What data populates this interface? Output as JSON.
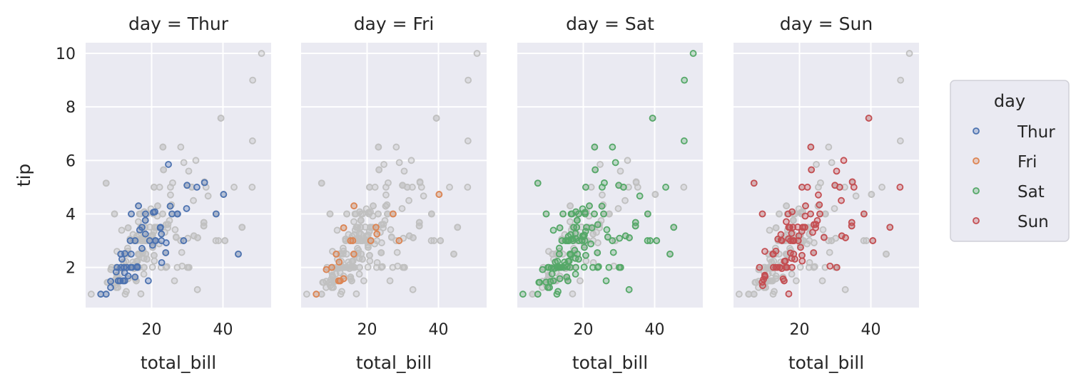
{
  "chart_data": {
    "type": "scatter",
    "facet_variable": "day",
    "facets": [
      {
        "title": "day = Thur",
        "hue": "Thur"
      },
      {
        "title": "day = Fri",
        "hue": "Fri"
      },
      {
        "title": "day = Sat",
        "hue": "Sat"
      },
      {
        "title": "day = Sun",
        "hue": "Sun"
      }
    ],
    "xlabel": "total_bill",
    "ylabel": "tip",
    "xlim": [
      1.5,
      53.5
    ],
    "ylim": [
      0.5,
      10.4
    ],
    "xticks": [
      20,
      40
    ],
    "yticks": [
      2,
      4,
      6,
      8,
      10
    ],
    "grid": true,
    "background_color": "#eaeaf2",
    "background_points_color": "#c0c0c0",
    "legend": {
      "title": "day",
      "placement": "right"
    },
    "series": [
      {
        "name": "Thur",
        "color": "#4c72b0",
        "points": [
          [
            27.2,
            4.0
          ],
          [
            22.76,
            3.0
          ],
          [
            17.29,
            2.71
          ],
          [
            19.44,
            3.0
          ],
          [
            16.66,
            3.4
          ],
          [
            10.07,
            1.83
          ],
          [
            32.68,
            5.0
          ],
          [
            15.98,
            2.03
          ],
          [
            34.83,
            5.17
          ],
          [
            13.03,
            2.0
          ],
          [
            18.28,
            4.0
          ],
          [
            24.71,
            5.85
          ],
          [
            21.16,
            3.0
          ],
          [
            28.97,
            3.0
          ],
          [
            22.49,
            3.5
          ],
          [
            5.75,
            1.0
          ],
          [
            16.32,
            4.3
          ],
          [
            22.75,
            3.25
          ],
          [
            40.17,
            4.73
          ],
          [
            27.28,
            4.0
          ],
          [
            12.03,
            1.5
          ],
          [
            21.01,
            3.0
          ],
          [
            12.46,
            1.5
          ],
          [
            11.35,
            2.5
          ],
          [
            15.38,
            3.0
          ],
          [
            44.3,
            2.5
          ],
          [
            22.42,
            3.48
          ],
          [
            20.92,
            4.08
          ],
          [
            15.36,
            1.64
          ],
          [
            20.49,
            4.06
          ],
          [
            25.21,
            4.29
          ],
          [
            18.24,
            3.76
          ],
          [
            14.31,
            4.0
          ],
          [
            14.0,
            3.0
          ],
          [
            7.25,
            1.0
          ],
          [
            38.07,
            4.0
          ],
          [
            23.95,
            2.55
          ],
          [
            25.71,
            4.0
          ],
          [
            17.31,
            3.5
          ],
          [
            29.93,
            5.07
          ],
          [
            10.65,
            1.5
          ],
          [
            12.43,
            1.8
          ],
          [
            24.08,
            2.92
          ],
          [
            11.69,
            2.31
          ],
          [
            13.42,
            1.68
          ],
          [
            14.26,
            2.5
          ],
          [
            15.95,
            2.0
          ],
          [
            12.48,
            2.52
          ],
          [
            29.8,
            4.2
          ],
          [
            8.52,
            1.48
          ],
          [
            14.52,
            2.0
          ],
          [
            11.38,
            2.0
          ],
          [
            22.82,
            2.18
          ],
          [
            19.08,
            1.5
          ],
          [
            20.27,
            2.83
          ],
          [
            11.17,
            1.5
          ],
          [
            12.26,
            2.0
          ],
          [
            18.26,
            3.25
          ],
          [
            8.51,
            1.25
          ],
          [
            10.33,
            2.0
          ],
          [
            14.15,
            2.0
          ],
          [
            16.0,
            2.0
          ]
        ]
      },
      {
        "name": "Fri",
        "color": "#dd8452",
        "points": [
          [
            28.97,
            3.0
          ],
          [
            22.49,
            3.5
          ],
          [
            5.75,
            1.0
          ],
          [
            16.32,
            4.3
          ],
          [
            22.75,
            3.25
          ],
          [
            40.17,
            4.73
          ],
          [
            27.28,
            4.0
          ],
          [
            12.03,
            1.5
          ],
          [
            21.01,
            3.0
          ],
          [
            12.46,
            1.5
          ],
          [
            11.35,
            2.5
          ],
          [
            15.38,
            3.0
          ],
          [
            12.16,
            2.2
          ],
          [
            13.42,
            3.48
          ],
          [
            8.58,
            1.92
          ],
          [
            15.98,
            3.0
          ],
          [
            13.42,
            1.58
          ],
          [
            16.27,
            2.5
          ],
          [
            10.09,
            2.0
          ]
        ]
      },
      {
        "name": "Sat",
        "color": "#55a868",
        "points": [
          [
            20.65,
            3.35
          ],
          [
            17.92,
            4.08
          ],
          [
            20.29,
            2.75
          ],
          [
            15.77,
            2.23
          ],
          [
            39.42,
            7.58
          ],
          [
            19.82,
            3.18
          ],
          [
            17.81,
            2.34
          ],
          [
            13.37,
            2.0
          ],
          [
            12.69,
            2.0
          ],
          [
            21.7,
            4.3
          ],
          [
            19.65,
            3.0
          ],
          [
            9.55,
            1.45
          ],
          [
            18.35,
            2.5
          ],
          [
            15.06,
            3.0
          ],
          [
            20.69,
            2.45
          ],
          [
            17.78,
            3.27
          ],
          [
            24.06,
            3.6
          ],
          [
            16.31,
            2.0
          ],
          [
            16.93,
            3.07
          ],
          [
            18.69,
            2.31
          ],
          [
            31.27,
            5.0
          ],
          [
            16.04,
            2.24
          ],
          [
            38.01,
            3.0
          ],
          [
            26.41,
            1.5
          ],
          [
            11.24,
            1.76
          ],
          [
            48.27,
            6.73
          ],
          [
            20.29,
            3.21
          ],
          [
            13.81,
            2.0
          ],
          [
            11.02,
            1.98
          ],
          [
            18.29,
            3.76
          ],
          [
            17.59,
            2.64
          ],
          [
            20.08,
            3.15
          ],
          [
            16.45,
            2.47
          ],
          [
            3.07,
            1.0
          ],
          [
            20.23,
            2.01
          ],
          [
            15.01,
            2.09
          ],
          [
            12.02,
            1.97
          ],
          [
            17.07,
            3.0
          ],
          [
            26.86,
            3.14
          ],
          [
            25.28,
            5.0
          ],
          [
            14.73,
            2.2
          ],
          [
            10.51,
            1.25
          ],
          [
            17.92,
            3.08
          ],
          [
            44.3,
            2.5
          ],
          [
            22.42,
            3.48
          ],
          [
            15.36,
            1.64
          ],
          [
            20.49,
            4.06
          ],
          [
            25.21,
            4.29
          ],
          [
            18.24,
            3.76
          ],
          [
            14.31,
            4.0
          ],
          [
            14.0,
            3.0
          ],
          [
            7.25,
            1.0
          ],
          [
            38.07,
            4.0
          ],
          [
            23.95,
            2.55
          ],
          [
            25.71,
            4.0
          ],
          [
            17.31,
            3.5
          ],
          [
            29.93,
            5.07
          ],
          [
            50.81,
            10.0
          ],
          [
            15.81,
            3.16
          ],
          [
            7.25,
            5.15
          ],
          [
            31.85,
            3.18
          ],
          [
            16.82,
            4.0
          ],
          [
            32.9,
            3.11
          ],
          [
            17.89,
            2.0
          ],
          [
            14.48,
            2.0
          ],
          [
            9.6,
            4.0
          ],
          [
            34.63,
            3.55
          ],
          [
            34.65,
            3.68
          ],
          [
            23.33,
            5.65
          ],
          [
            45.35,
            3.5
          ],
          [
            23.17,
            6.5
          ],
          [
            40.55,
            3.0
          ],
          [
            20.69,
            5.0
          ],
          [
            20.9,
            3.5
          ],
          [
            30.46,
            2.0
          ],
          [
            18.15,
            3.5
          ],
          [
            23.1,
            4.0
          ],
          [
            15.69,
            1.5
          ],
          [
            19.81,
            4.19
          ],
          [
            28.44,
            2.56
          ],
          [
            15.48,
            2.02
          ],
          [
            16.58,
            4.0
          ],
          [
            7.56,
            1.44
          ],
          [
            10.34,
            2.0
          ],
          [
            43.11,
            5.0
          ],
          [
            13.0,
            2.0
          ],
          [
            13.51,
            2.0
          ],
          [
            18.71,
            4.0
          ],
          [
            12.74,
            2.01
          ],
          [
            13.0,
            2.0
          ],
          [
            16.4,
            2.5
          ],
          [
            20.53,
            4.0
          ],
          [
            16.47,
            3.23
          ],
          [
            26.59,
            3.41
          ],
          [
            38.73,
            3.0
          ],
          [
            24.27,
            2.03
          ],
          [
            12.76,
            2.23
          ],
          [
            30.06,
            2.0
          ],
          [
            25.89,
            5.16
          ],
          [
            48.33,
            9.0
          ],
          [
            13.27,
            2.5
          ],
          [
            28.17,
            6.5
          ],
          [
            12.9,
            1.1
          ],
          [
            28.15,
            3.0
          ],
          [
            11.59,
            1.5
          ],
          [
            7.74,
            1.44
          ],
          [
            30.14,
            3.09
          ],
          [
            12.16,
            2.2
          ],
          [
            13.42,
            3.48
          ],
          [
            8.58,
            1.92
          ],
          [
            15.98,
            3.0
          ],
          [
            13.42,
            1.58
          ],
          [
            16.27,
            2.5
          ],
          [
            10.09,
            2.0
          ],
          [
            20.45,
            3.0
          ],
          [
            13.28,
            2.72
          ],
          [
            22.12,
            2.88
          ],
          [
            24.01,
            2.0
          ],
          [
            15.69,
            3.0
          ],
          [
            11.61,
            3.39
          ],
          [
            10.77,
            1.47
          ],
          [
            15.53,
            3.0
          ],
          [
            10.07,
            1.25
          ],
          [
            12.6,
            1.0
          ],
          [
            32.83,
            1.17
          ],
          [
            35.83,
            4.67
          ],
          [
            29.03,
            5.92
          ],
          [
            27.18,
            2.0
          ],
          [
            22.67,
            2.0
          ],
          [
            17.82,
            1.75
          ],
          [
            18.78,
            3.0
          ]
        ]
      },
      {
        "name": "Sun",
        "color": "#c44e52",
        "points": [
          [
            16.99,
            1.01
          ],
          [
            10.34,
            1.66
          ],
          [
            21.01,
            3.5
          ],
          [
            23.68,
            3.31
          ],
          [
            24.59,
            3.61
          ],
          [
            25.29,
            4.71
          ],
          [
            8.77,
            2.0
          ],
          [
            26.88,
            3.12
          ],
          [
            15.04,
            1.96
          ],
          [
            14.78,
            3.23
          ],
          [
            10.27,
            1.71
          ],
          [
            35.26,
            5.0
          ],
          [
            15.42,
            1.57
          ],
          [
            18.43,
            3.0
          ],
          [
            14.83,
            3.02
          ],
          [
            21.58,
            3.92
          ],
          [
            10.33,
            1.67
          ],
          [
            16.29,
            3.71
          ],
          [
            16.97,
            3.5
          ],
          [
            20.65,
            3.35
          ],
          [
            17.92,
            4.08
          ],
          [
            20.29,
            2.75
          ],
          [
            15.77,
            2.23
          ],
          [
            39.42,
            7.58
          ],
          [
            19.82,
            3.18
          ],
          [
            17.81,
            2.34
          ],
          [
            13.37,
            2.0
          ],
          [
            12.69,
            2.0
          ],
          [
            21.7,
            4.3
          ],
          [
            19.65,
            3.0
          ],
          [
            9.55,
            1.45
          ],
          [
            18.35,
            2.5
          ],
          [
            15.06,
            3.0
          ],
          [
            20.69,
            2.45
          ],
          [
            17.78,
            3.27
          ],
          [
            24.06,
            3.6
          ],
          [
            16.31,
            2.0
          ],
          [
            16.93,
            3.07
          ],
          [
            18.69,
            2.31
          ],
          [
            31.27,
            5.0
          ],
          [
            16.04,
            2.24
          ],
          [
            17.46,
            2.54
          ],
          [
            13.94,
            3.06
          ],
          [
            9.68,
            1.32
          ],
          [
            30.4,
            5.6
          ],
          [
            18.29,
            3.0
          ],
          [
            22.23,
            5.0
          ],
          [
            32.4,
            6.0
          ],
          [
            28.55,
            2.05
          ],
          [
            18.04,
            3.0
          ],
          [
            12.54,
            2.5
          ],
          [
            10.29,
            2.6
          ],
          [
            34.81,
            5.2
          ],
          [
            9.94,
            1.56
          ],
          [
            25.56,
            4.34
          ],
          [
            19.49,
            3.51
          ],
          [
            38.07,
            4.0
          ],
          [
            23.95,
            2.55
          ],
          [
            25.71,
            4.0
          ],
          [
            17.31,
            3.5
          ],
          [
            29.93,
            5.07
          ],
          [
            48.17,
            5.0
          ],
          [
            25.0,
            3.75
          ],
          [
            13.39,
            2.61
          ],
          [
            16.49,
            2.0
          ],
          [
            21.5,
            3.5
          ],
          [
            12.66,
            2.5
          ],
          [
            16.21,
            2.0
          ],
          [
            13.81,
            2.0
          ],
          [
            17.51,
            3.0
          ],
          [
            24.52,
            3.48
          ],
          [
            20.76,
            2.24
          ],
          [
            31.71,
            4.5
          ],
          [
            7.25,
            5.15
          ],
          [
            31.85,
            3.18
          ],
          [
            16.82,
            4.0
          ],
          [
            32.9,
            3.11
          ],
          [
            17.89,
            2.0
          ],
          [
            14.48,
            2.0
          ],
          [
            9.6,
            4.0
          ],
          [
            34.63,
            3.55
          ],
          [
            34.65,
            3.68
          ],
          [
            23.33,
            5.65
          ],
          [
            45.35,
            3.5
          ],
          [
            23.17,
            6.5
          ],
          [
            40.55,
            3.0
          ],
          [
            20.69,
            5.0
          ],
          [
            20.9,
            3.5
          ],
          [
            30.46,
            2.0
          ],
          [
            18.15,
            3.5
          ],
          [
            23.1,
            4.0
          ],
          [
            15.69,
            1.5
          ]
        ]
      }
    ]
  }
}
